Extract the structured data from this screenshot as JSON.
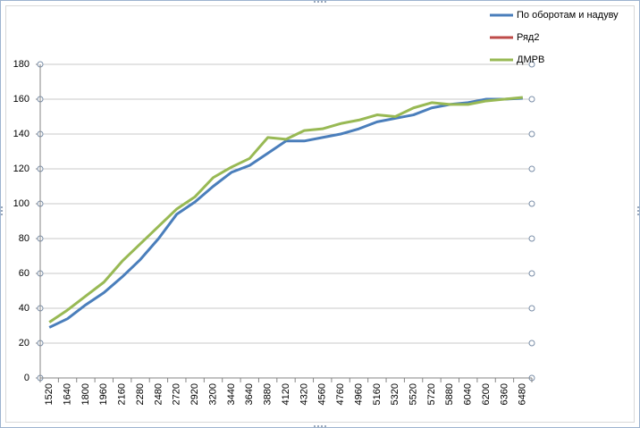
{
  "chart_data": {
    "type": "line",
    "categories": [
      "1520",
      "1640",
      "1800",
      "1960",
      "2160",
      "2280",
      "2480",
      "2720",
      "2920",
      "3200",
      "3440",
      "3640",
      "3880",
      "4120",
      "4320",
      "4560",
      "4760",
      "4960",
      "5160",
      "5320",
      "5520",
      "5720",
      "5880",
      "6040",
      "6200",
      "6360",
      "6480"
    ],
    "series": [
      {
        "name": "По оборотам  и надуву",
        "color": "#4a7ebb",
        "values": [
          29,
          34,
          42,
          49,
          58,
          68,
          80,
          94,
          101,
          110,
          118,
          122,
          129,
          136,
          136,
          138,
          140,
          143,
          147,
          149,
          151,
          155,
          157,
          158,
          160,
          160,
          160.5
        ]
      },
      {
        "name": "Ряд2",
        "color": "#be4b48",
        "values": [
          null,
          null,
          null,
          null,
          null,
          null,
          null,
          null,
          null,
          null,
          null,
          null,
          null,
          null,
          null,
          null,
          null,
          null,
          null,
          null,
          null,
          null,
          null,
          null,
          null,
          null,
          null
        ]
      },
      {
        "name": "ДМРВ",
        "color": "#98b954",
        "values": [
          32,
          39,
          47,
          55,
          67,
          77,
          87,
          97,
          104,
          115,
          121,
          126,
          138,
          137,
          142,
          143,
          146,
          148,
          151,
          150,
          155,
          158,
          157,
          157,
          159,
          160,
          161
        ]
      }
    ],
    "ylim": [
      0,
      180
    ],
    "yticks": [
      0,
      20,
      40,
      60,
      80,
      100,
      120,
      140,
      160,
      180
    ],
    "grid": true,
    "legend": "top-right"
  }
}
